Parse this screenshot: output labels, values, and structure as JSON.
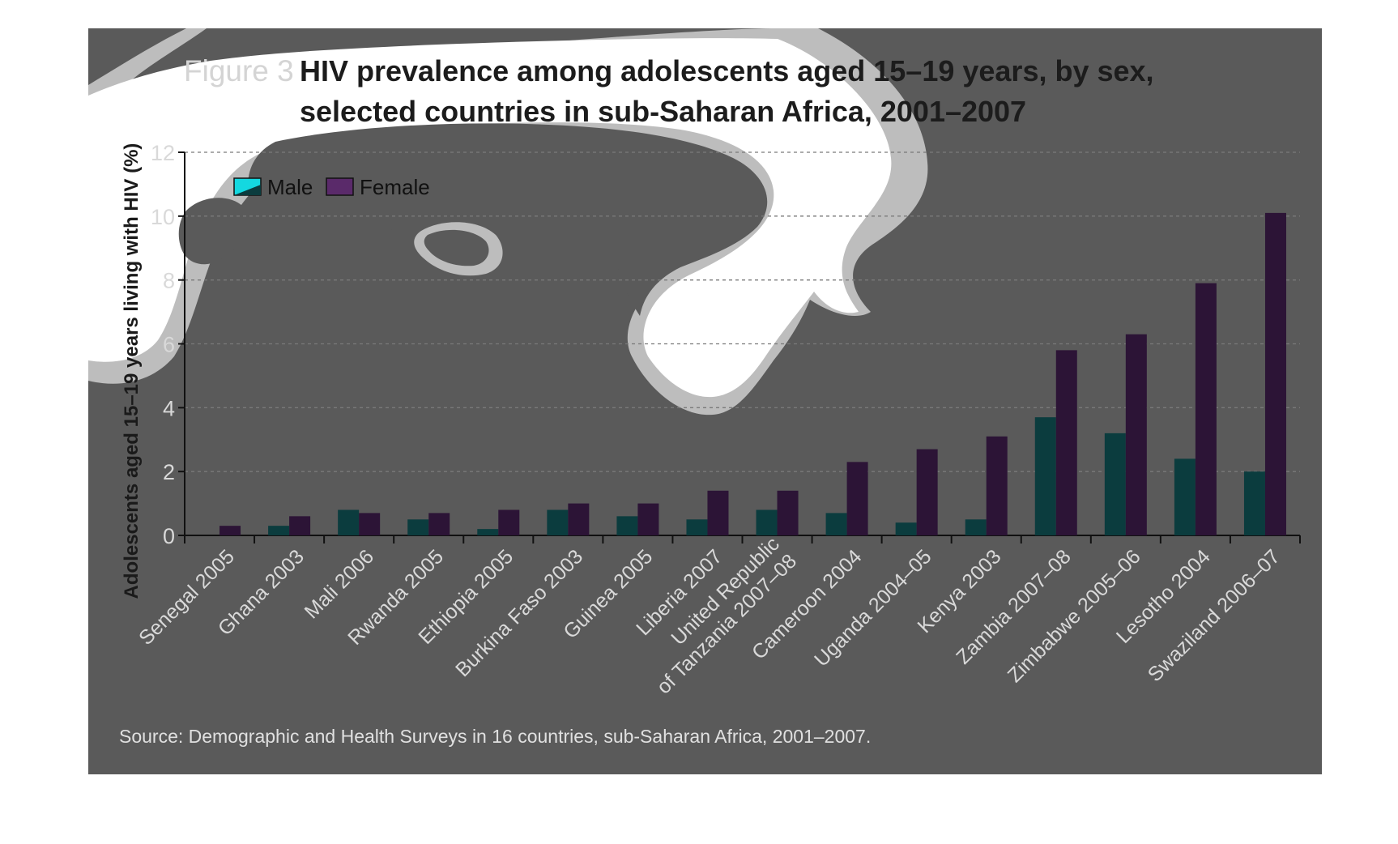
{
  "figure_label": "Figure 3",
  "source_note": "Source: Demographic and Health Surveys in 16 countries, sub-Saharan Africa, 2001–2007.",
  "colors": {
    "background": "#5a5a5a",
    "male": "#0b3c3e",
    "female": "#2c1436",
    "legend_male": "#14d8e0",
    "legend_female": "#5a2a6a",
    "blob_light": "#bdbdbd",
    "blob_white": "#ffffff"
  },
  "chart_data": {
    "type": "bar",
    "title_lines": [
      "HIV prevalence among adolescents aged 15–19 years, by sex,",
      "selected countries in sub-Saharan Africa, 2001–2007"
    ],
    "ylabel": "Adolescents aged 15–19 years living with HIV (%)",
    "xlabel": "",
    "ylim": [
      0,
      12
    ],
    "yticks": [
      0,
      2,
      4,
      6,
      8,
      10,
      12
    ],
    "grid": true,
    "legend_position": "top-left",
    "categories": [
      "Senegal 2005",
      "Ghana 2003",
      "Mali 2006",
      "Rwanda 2005",
      "Ethiopia 2005",
      "Burkina Faso 2003",
      "Guinea 2005",
      "Liberia 2007",
      "United Republic|of Tanzania 2007–08",
      "Cameroon 2004",
      "Uganda 2004–05",
      "Kenya 2003",
      "Zambia 2007–08",
      "Zimbabwe 2005–06",
      "Lesotho 2004",
      "Swaziland 2006–07"
    ],
    "series": [
      {
        "name": "Male",
        "values": [
          0.0,
          0.3,
          0.8,
          0.5,
          0.2,
          0.8,
          0.6,
          0.5,
          0.8,
          0.7,
          0.4,
          0.5,
          3.7,
          3.2,
          2.4,
          2.0
        ]
      },
      {
        "name": "Female",
        "values": [
          0.3,
          0.6,
          0.7,
          0.7,
          0.8,
          1.0,
          1.0,
          1.4,
          1.4,
          2.3,
          2.7,
          3.1,
          5.8,
          6.3,
          7.9,
          10.1
        ]
      }
    ]
  }
}
